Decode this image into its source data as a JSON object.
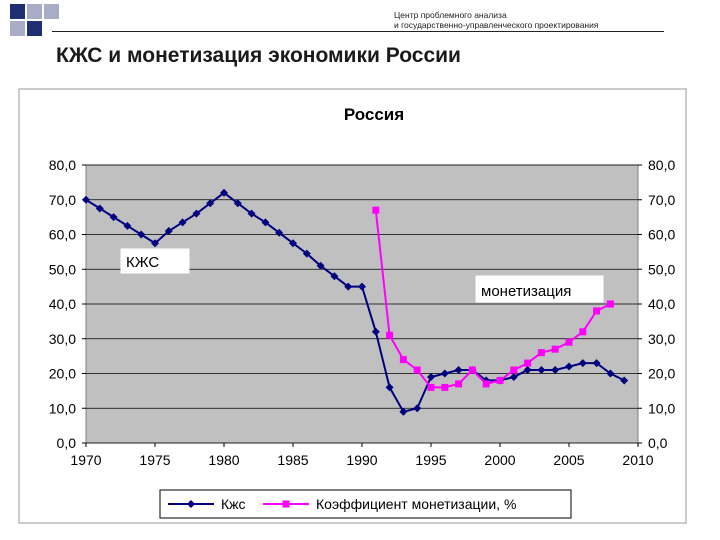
{
  "header": {
    "org_line1": "Центр проблемного анализа",
    "org_line2": "и государственно-управленческого проектирования",
    "title": "КЖС и монетизация экономики России"
  },
  "colors": {
    "plot_bg": "#c0c0c0",
    "kzhs": "#00007f",
    "monetization": "#ff00ff",
    "deco_dark": "#1f2f73",
    "deco_light": "#a8acc6"
  },
  "chart_data": {
    "type": "line",
    "title": "Россия",
    "xlabel": "",
    "ylabel": "",
    "xlim": [
      1970,
      2010
    ],
    "ylim": [
      0,
      80
    ],
    "x_ticks": [
      "1970",
      "1975",
      "1980",
      "1985",
      "1990",
      "1995",
      "2000",
      "2005",
      "2010"
    ],
    "y_ticks": [
      "0,0",
      "10,0",
      "20,0",
      "30,0",
      "40,0",
      "50,0",
      "60,0",
      "70,0",
      "80,0"
    ],
    "grid": "horizontal",
    "legend_position": "bottom",
    "annotations": [
      {
        "text": "КЖС",
        "series": "Кжс"
      },
      {
        "text": "монетизация",
        "series": "Коэффициент монетизации, %"
      }
    ],
    "series": [
      {
        "name": "Кжс",
        "color": "#00007f",
        "marker": "diamond",
        "x": [
          1970,
          1971,
          1972,
          1973,
          1974,
          1975,
          1976,
          1977,
          1978,
          1979,
          1980,
          1981,
          1982,
          1983,
          1984,
          1985,
          1986,
          1987,
          1988,
          1989,
          1990,
          1991,
          1992,
          1993,
          1994,
          1995,
          1996,
          1997,
          1998,
          1999,
          2000,
          2001,
          2002,
          2003,
          2004,
          2005,
          2006,
          2007,
          2008,
          2009
        ],
        "values": [
          70,
          67.5,
          65,
          62.5,
          60,
          57.5,
          61,
          63.5,
          66,
          69,
          72,
          69,
          66,
          63.5,
          60.5,
          57.5,
          54.5,
          51,
          48,
          45,
          45,
          32,
          16,
          9,
          10,
          19,
          20,
          21,
          21,
          18,
          18,
          19,
          21,
          21,
          21,
          22,
          23,
          23,
          20,
          18
        ]
      },
      {
        "name": "Коэффициент монетизации, %",
        "color": "#ff00ff",
        "marker": "square",
        "x": [
          1991,
          1992,
          1993,
          1994,
          1995,
          1996,
          1997,
          1998,
          1999,
          2000,
          2001,
          2002,
          2003,
          2004,
          2005,
          2006,
          2007,
          2008
        ],
        "values": [
          67,
          31,
          24,
          21,
          16,
          16,
          17,
          21,
          17,
          18,
          21,
          23,
          26,
          27,
          29,
          32,
          38,
          40
        ]
      }
    ]
  }
}
